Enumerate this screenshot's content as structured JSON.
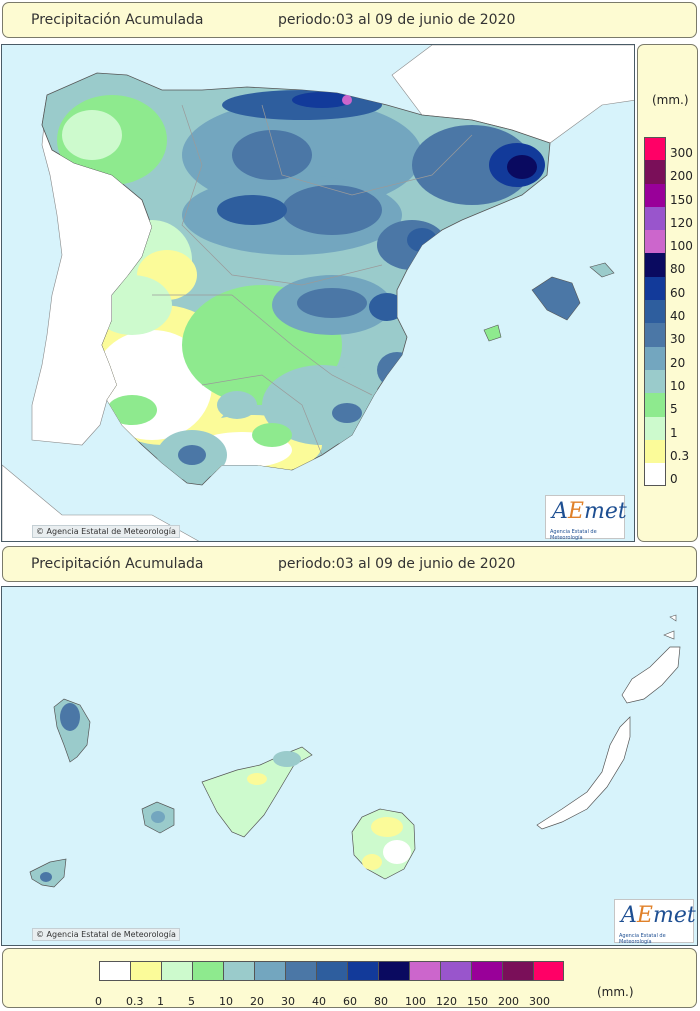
{
  "header_top": {
    "title": "Precipitación Acumulada",
    "period": "periodo:03 al 09 de junio de 2020"
  },
  "header_mid": {
    "title": "Precipitación Acumulada",
    "period": "periodo:03 al 09 de junio de 2020"
  },
  "credit_top": "Agencia Estatal de Meteorología",
  "credit_bottom": "Agencia Estatal de Meteorología",
  "logo": {
    "word_a": "A",
    "word_e": "E",
    "word_rest": "met",
    "subtitle": "Agencia Estatal de Meteorología"
  },
  "legend_unit": "(mm.)",
  "scale": [
    {
      "label": "300",
      "color": "#ff0066"
    },
    {
      "label": "200",
      "color": "#7a0f59"
    },
    {
      "label": "150",
      "color": "#990099"
    },
    {
      "label": "120",
      "color": "#9955cc"
    },
    {
      "label": "100",
      "color": "#cc66cc"
    },
    {
      "label": "80",
      "color": "#0a0a60"
    },
    {
      "label": "60",
      "color": "#123a9a"
    },
    {
      "label": "40",
      "color": "#2e5e9e"
    },
    {
      "label": "30",
      "color": "#4b77a6"
    },
    {
      "label": "20",
      "color": "#73a6bf"
    },
    {
      "label": "10",
      "color": "#9acbcb"
    },
    {
      "label": "5",
      "color": "#8eea8e"
    },
    {
      "label": "1",
      "color": "#cdfacd"
    },
    {
      "label": "0.3",
      "color": "#fbfb99"
    },
    {
      "label": "0",
      "color": "#ffffff"
    }
  ],
  "bottom_scale_labels": [
    "0",
    "0.3",
    "1",
    "5",
    "10",
    "20",
    "30",
    "40",
    "60",
    "80",
    "100",
    "120",
    "150",
    "200",
    "300"
  ],
  "bottom_unit": "(mm.)"
}
